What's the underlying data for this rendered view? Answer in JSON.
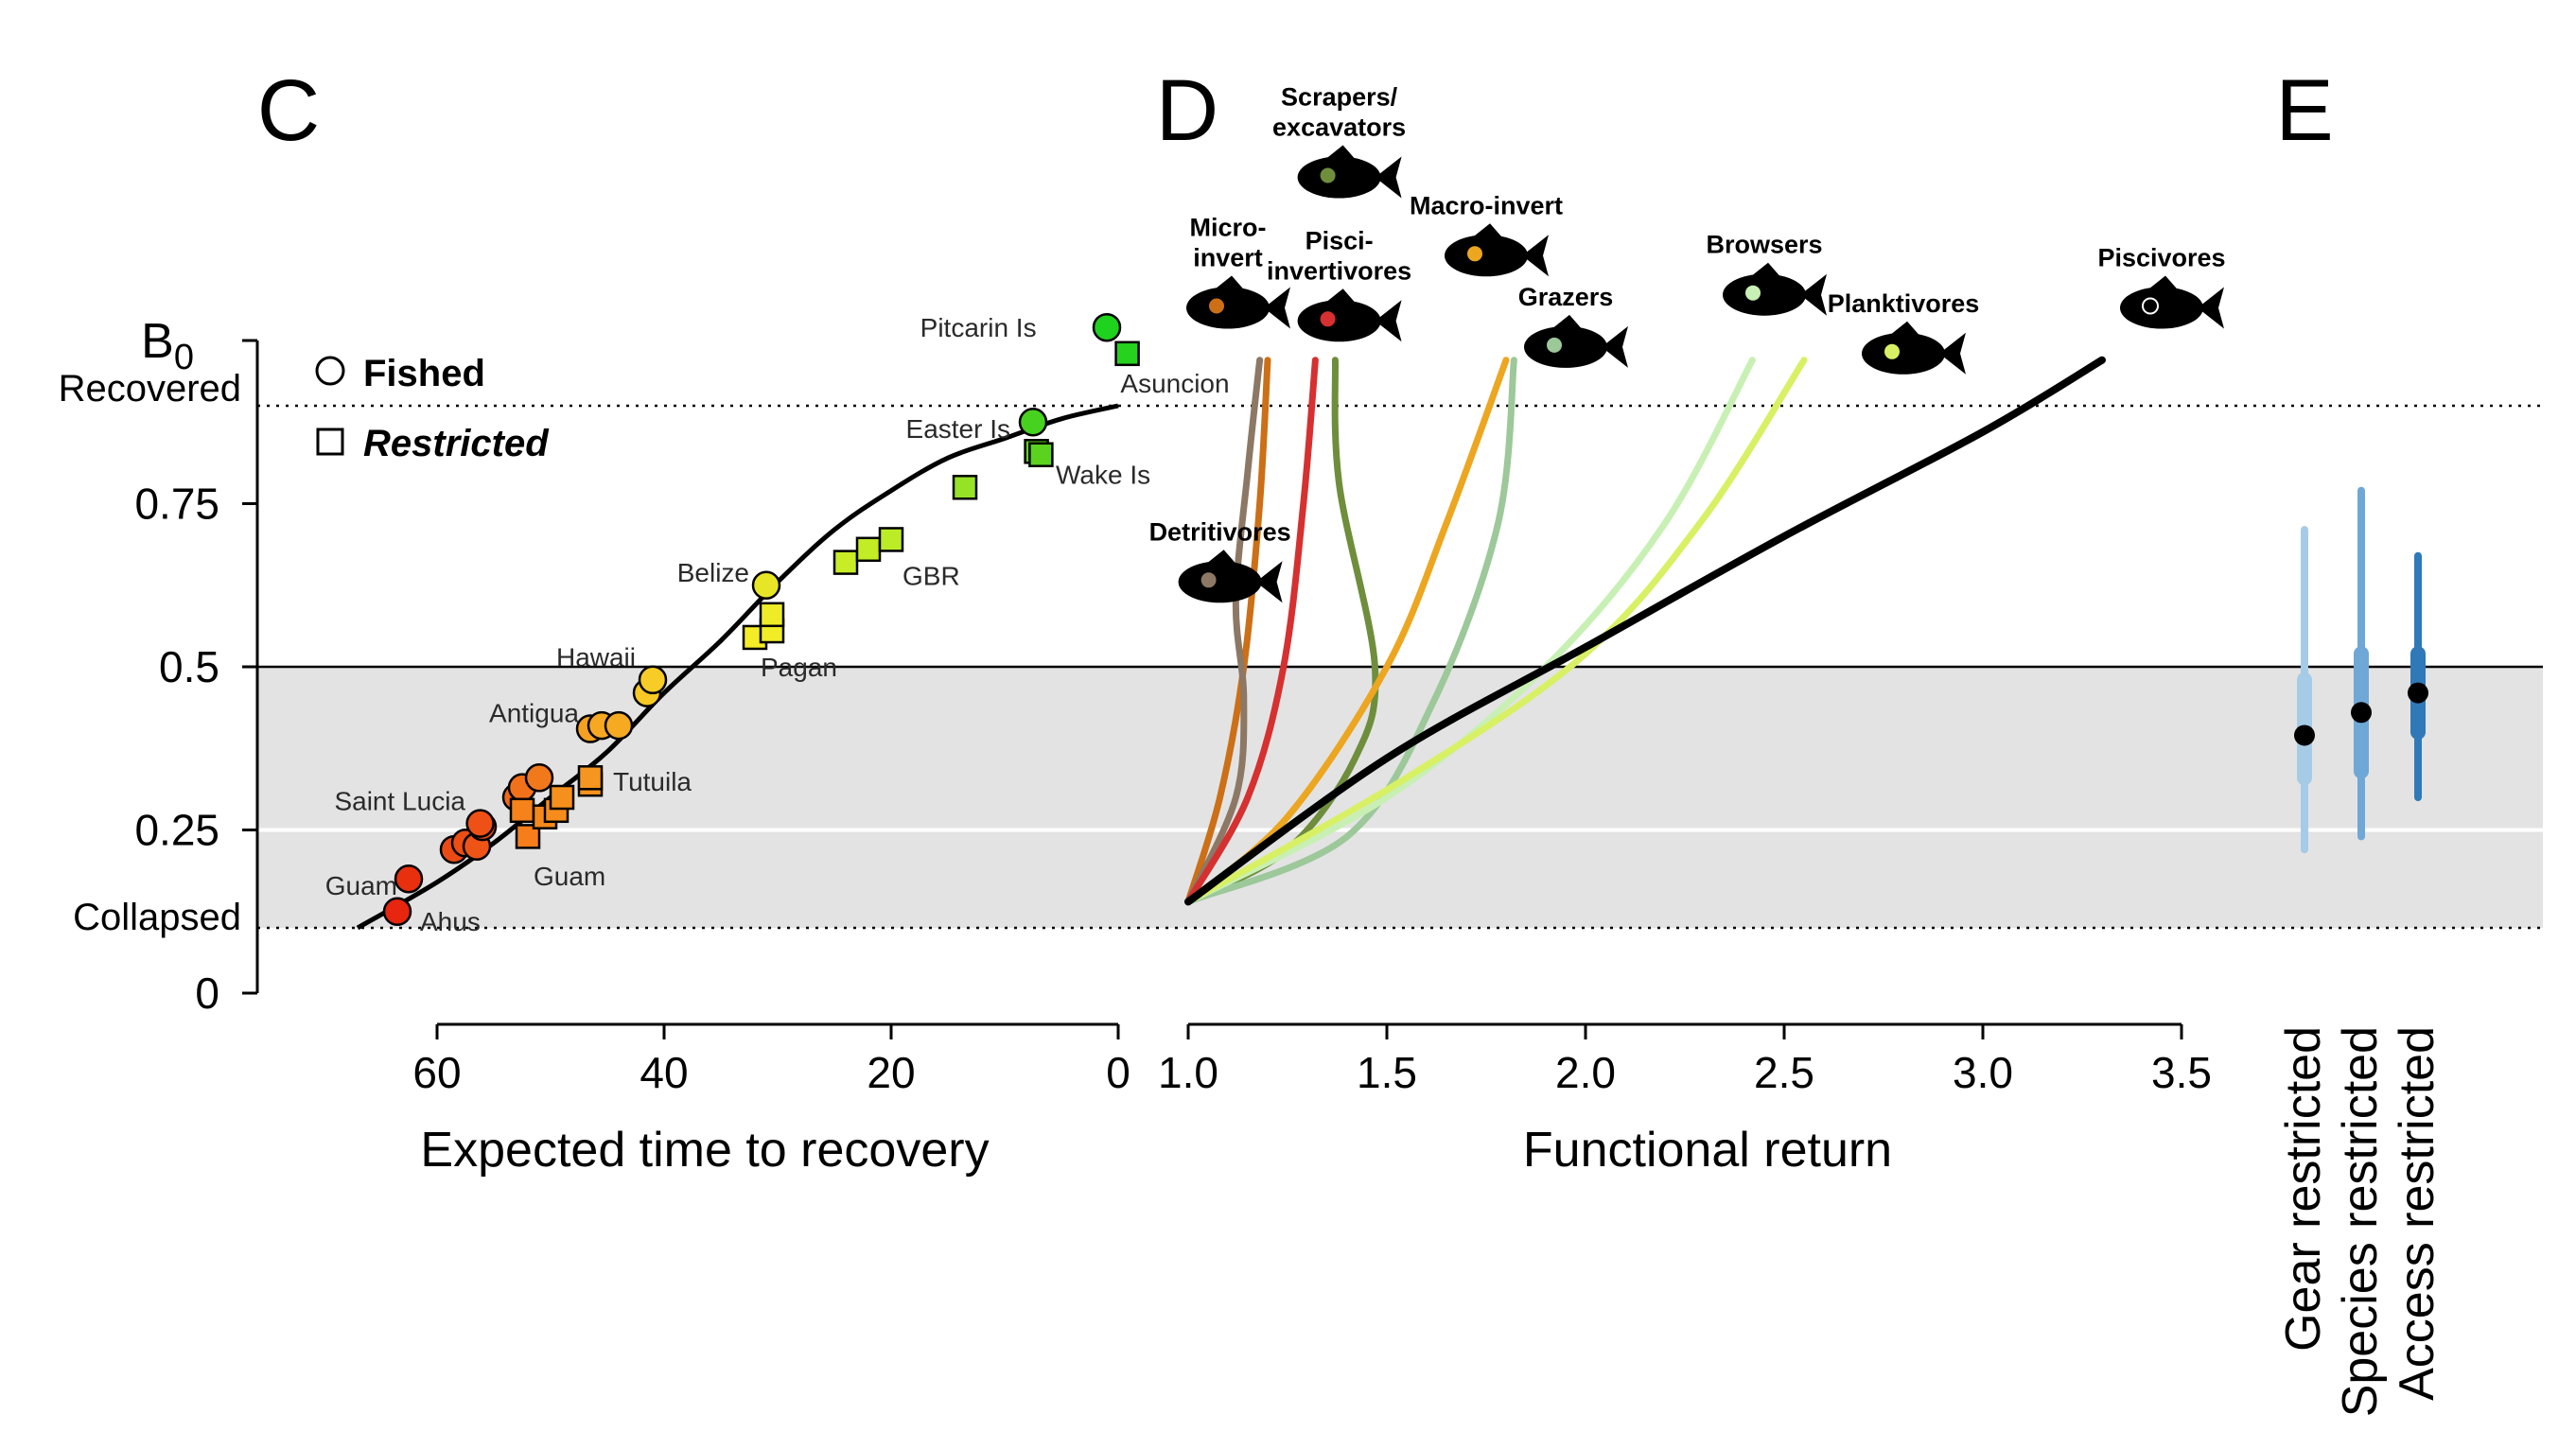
{
  "panels": {
    "c": "C",
    "d": "D",
    "e": "E"
  },
  "colors": {
    "shade": "#e3e3e3",
    "curve": "#000000",
    "e_light": "#a6cbe6",
    "e_mid": "#6fa8d6",
    "e_dark": "#2f79b8"
  },
  "chart_data": [
    {
      "type": "scatter",
      "xlabel": "Expected time to recovery",
      "ylabel": "B0",
      "x_reversed": true,
      "xlim": [
        67,
        0
      ],
      "ylim": [
        0,
        1
      ],
      "x_ticks": [
        "60",
        "40",
        "20",
        "0"
      ],
      "y_ticks": [
        "0",
        "0.25",
        "0.5",
        "0.75"
      ],
      "y_tick_values": [
        0,
        0.25,
        0.5,
        0.75
      ],
      "y_text_labels": {
        "top": "B0",
        "recovered": "Recovered",
        "collapsed": "Collapsed"
      },
      "reference_lines": {
        "recovered": 0.9,
        "collapsed": 0.1,
        "midline": 0.5
      },
      "shaded_region": [
        0.1,
        0.5
      ],
      "legend": {
        "placement": "top-left",
        "fished": "Fished",
        "restricted": "Restricted"
      },
      "fit_curve": {
        "x": [
          67,
          60,
          55,
          50,
          45,
          40,
          35,
          30,
          25,
          20,
          15,
          10,
          5,
          0
        ],
        "y": [
          0.1,
          0.17,
          0.23,
          0.3,
          0.37,
          0.46,
          0.54,
          0.63,
          0.71,
          0.77,
          0.82,
          0.85,
          0.88,
          0.9
        ]
      },
      "series": [
        {
          "name": "Fished",
          "marker": "circle",
          "points": [
            {
              "x": 63.5,
              "y": 0.125,
              "color": "#e8250f"
            },
            {
              "x": 62.5,
              "y": 0.175,
              "color": "#e8300f"
            },
            {
              "x": 58.5,
              "y": 0.22,
              "color": "#ec4a14"
            },
            {
              "x": 57.5,
              "y": 0.23,
              "color": "#ec4e14"
            },
            {
              "x": 56.5,
              "y": 0.225,
              "color": "#ee5416"
            },
            {
              "x": 56.0,
              "y": 0.255,
              "color": "#ed4a14"
            },
            {
              "x": 56.2,
              "y": 0.26,
              "color": "#ee5016"
            },
            {
              "x": 53.0,
              "y": 0.3,
              "color": "#f06a18"
            },
            {
              "x": 52.5,
              "y": 0.315,
              "color": "#f1701a"
            },
            {
              "x": 51.0,
              "y": 0.33,
              "color": "#f2781c"
            },
            {
              "x": 46.5,
              "y": 0.405,
              "color": "#f5a020"
            },
            {
              "x": 45.5,
              "y": 0.41,
              "color": "#f6a822"
            },
            {
              "x": 44.0,
              "y": 0.41,
              "color": "#f6aa22"
            },
            {
              "x": 41.5,
              "y": 0.46,
              "color": "#f8c824"
            },
            {
              "x": 41.0,
              "y": 0.48,
              "color": "#f8cc26"
            },
            {
              "x": 31.0,
              "y": 0.625,
              "color": "#e6e626"
            },
            {
              "x": 7.5,
              "y": 0.875,
              "color": "#46d21e"
            },
            {
              "x": 1.0,
              "y": 1.02,
              "color": "#1ed21e"
            }
          ]
        },
        {
          "name": "Restricted",
          "marker": "square",
          "points": [
            {
              "x": 52.0,
              "y": 0.24,
              "color": "#f57e1a"
            },
            {
              "x": 52.5,
              "y": 0.28,
              "color": "#f5821a"
            },
            {
              "x": 50.5,
              "y": 0.27,
              "color": "#f5881c"
            },
            {
              "x": 49.5,
              "y": 0.28,
              "color": "#f68c1c"
            },
            {
              "x": 49.0,
              "y": 0.3,
              "color": "#f6901c"
            },
            {
              "x": 46.5,
              "y": 0.32,
              "color": "#f6921c"
            },
            {
              "x": 46.5,
              "y": 0.33,
              "color": "#f69620"
            },
            {
              "x": 32.0,
              "y": 0.545,
              "color": "#f4ec26"
            },
            {
              "x": 30.5,
              "y": 0.555,
              "color": "#f0ec26"
            },
            {
              "x": 30.5,
              "y": 0.58,
              "color": "#eeec26"
            },
            {
              "x": 24.0,
              "y": 0.66,
              "color": "#c8ec26"
            },
            {
              "x": 22.0,
              "y": 0.68,
              "color": "#c2ec26"
            },
            {
              "x": 20.0,
              "y": 0.695,
              "color": "#bcec26"
            },
            {
              "x": 13.5,
              "y": 0.775,
              "color": "#96e226"
            },
            {
              "x": 7.2,
              "y": 0.83,
              "color": "#5ed21e"
            },
            {
              "x": 6.8,
              "y": 0.825,
              "color": "#5ad21e"
            },
            {
              "x": -0.8,
              "y": 0.98,
              "color": "#26d21e"
            }
          ]
        }
      ],
      "site_labels": [
        {
          "text": "Pitcarin Is",
          "x": 7.2,
          "y": 1.02,
          "anchor": "end"
        },
        {
          "text": "Asuncion",
          "x": -0.2,
          "y": 0.935,
          "anchor": "start"
        },
        {
          "text": "Easter Is",
          "x": 9.5,
          "y": 0.865,
          "anchor": "end"
        },
        {
          "text": "Wake Is",
          "x": 5.5,
          "y": 0.795,
          "anchor": "start"
        },
        {
          "text": "GBR",
          "x": 19.0,
          "y": 0.64,
          "anchor": "start"
        },
        {
          "text": "Belize",
          "x": 32.5,
          "y": 0.645,
          "anchor": "end"
        },
        {
          "text": "Pagan",
          "x": 31.5,
          "y": 0.5,
          "anchor": "start"
        },
        {
          "text": "Hawaii",
          "x": 42.5,
          "y": 0.515,
          "anchor": "end"
        },
        {
          "text": "Antigua",
          "x": 47.5,
          "y": 0.43,
          "anchor": "end"
        },
        {
          "text": "Tutuila",
          "x": 44.5,
          "y": 0.325,
          "anchor": "start"
        },
        {
          "text": "Saint Lucia",
          "x": 57.5,
          "y": 0.295,
          "anchor": "end"
        },
        {
          "text": "Guam",
          "x": 51.5,
          "y": 0.18,
          "anchor": "start"
        },
        {
          "text": "Guam",
          "x": 63.5,
          "y": 0.165,
          "anchor": "end"
        },
        {
          "text": "Ahus",
          "x": 61.5,
          "y": 0.11,
          "anchor": "start"
        }
      ]
    },
    {
      "type": "line",
      "xlabel": "Functional return",
      "xlim": [
        1.0,
        3.5
      ],
      "ylim": [
        0,
        1
      ],
      "x_ticks": [
        "1.0",
        "1.5",
        "2.0",
        "2.5",
        "3.0",
        "3.5"
      ],
      "x_tick_values": [
        1.0,
        1.5,
        2.0,
        2.5,
        3.0,
        3.5
      ],
      "series": [
        {
          "name": "Micro-invert",
          "color": "#cc6f16",
          "x": [
            1.0,
            1.08,
            1.14,
            1.18,
            1.2
          ],
          "y": [
            0.14,
            0.3,
            0.5,
            0.75,
            0.97
          ]
        },
        {
          "name": "Detritivores",
          "color": "#8c7864",
          "x": [
            1.0,
            1.12,
            1.14,
            1.12,
            1.15,
            1.18
          ],
          "y": [
            0.14,
            0.3,
            0.45,
            0.6,
            0.8,
            0.97
          ]
        },
        {
          "name": "Pisci-invertivores",
          "color": "#d63030",
          "x": [
            1.0,
            1.15,
            1.24,
            1.29,
            1.32
          ],
          "y": [
            0.14,
            0.3,
            0.5,
            0.75,
            0.97
          ]
        },
        {
          "name": "Scrapers/ excavators",
          "color": "#6e8e3c",
          "x": [
            1.0,
            1.25,
            1.42,
            1.47,
            1.38,
            1.37
          ],
          "y": [
            0.14,
            0.22,
            0.36,
            0.5,
            0.78,
            0.97
          ]
        },
        {
          "name": "Macro-invert",
          "color": "#eca620",
          "x": [
            1.0,
            1.25,
            1.5,
            1.65,
            1.8
          ],
          "y": [
            0.14,
            0.27,
            0.5,
            0.72,
            0.97
          ]
        },
        {
          "name": "Grazers",
          "color": "#9cc89a",
          "x": [
            1.0,
            1.4,
            1.62,
            1.78,
            1.82
          ],
          "y": [
            0.14,
            0.24,
            0.45,
            0.72,
            0.97
          ]
        },
        {
          "name": "Browsers",
          "color": "#c8f0b4",
          "x": [
            1.0,
            1.5,
            1.9,
            2.2,
            2.42
          ],
          "y": [
            0.14,
            0.3,
            0.5,
            0.72,
            0.97
          ]
        },
        {
          "name": "Planktivores",
          "color": "#d8f064",
          "x": [
            1.0,
            1.55,
            2.0,
            2.3,
            2.55
          ],
          "y": [
            0.14,
            0.33,
            0.52,
            0.73,
            0.97
          ]
        },
        {
          "name": "Piscivores",
          "color": "#000000",
          "x": [
            1.0,
            1.5,
            2.0,
            2.5,
            3.0,
            3.3
          ],
          "y": [
            0.14,
            0.36,
            0.53,
            0.7,
            0.86,
            0.97
          ]
        }
      ],
      "group_labels": [
        {
          "lines": [
            "Scrapers/",
            "excavators"
          ],
          "fish_x": 1.38,
          "fish_y": 1.25,
          "dot": "#6e8e3c"
        },
        {
          "lines": [
            "Micro-",
            "invert"
          ],
          "fish_x": 1.1,
          "fish_y": 1.05,
          "dot": "#cc6f16"
        },
        {
          "lines": [
            "Pisci-",
            "invertivores"
          ],
          "fish_x": 1.38,
          "fish_y": 1.03,
          "dot": "#d63030"
        },
        {
          "lines": [
            "Macro-invert"
          ],
          "fish_x": 1.75,
          "fish_y": 1.13,
          "dot": "#eca620"
        },
        {
          "lines": [
            "Grazers"
          ],
          "fish_x": 1.95,
          "fish_y": 0.99,
          "dot": "#9cc89a"
        },
        {
          "lines": [
            "Browsers"
          ],
          "fish_x": 2.45,
          "fish_y": 1.07,
          "dot": "#c8f0b4"
        },
        {
          "lines": [
            "Planktivores"
          ],
          "fish_x": 2.8,
          "fish_y": 0.98,
          "dot": "#d8f064"
        },
        {
          "lines": [
            "Piscivores"
          ],
          "fish_x": 3.45,
          "fish_y": 1.05,
          "dot": "#000000"
        },
        {
          "lines": [
            "Detritivores"
          ],
          "fish_x": 1.08,
          "fish_y": 0.63,
          "dot": "#8c7864"
        }
      ]
    },
    {
      "type": "scatter",
      "categories": [
        "Gear restricted",
        "Species restricted",
        "Access restricted"
      ],
      "values": [
        0.395,
        0.43,
        0.46
      ],
      "ci_narrow": [
        [
          0.33,
          0.48
        ],
        [
          0.34,
          0.52
        ],
        [
          0.4,
          0.52
        ]
      ],
      "ci_wide": [
        [
          0.22,
          0.71
        ],
        [
          0.24,
          0.77
        ],
        [
          0.3,
          0.67
        ]
      ],
      "colors": [
        "#a6cbe6",
        "#6fa8d6",
        "#2f79b8"
      ]
    }
  ]
}
